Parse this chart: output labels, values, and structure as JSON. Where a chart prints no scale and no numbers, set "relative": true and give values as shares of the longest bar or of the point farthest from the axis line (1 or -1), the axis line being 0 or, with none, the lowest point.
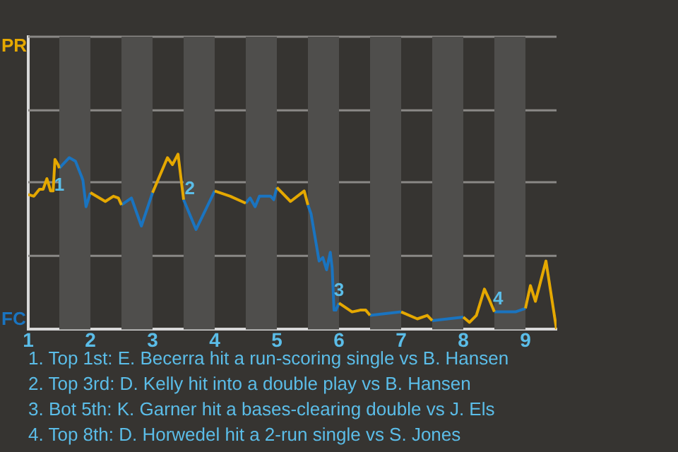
{
  "chart_data": {
    "type": "line",
    "relative": true,
    "xlim": [
      1,
      9.5
    ],
    "xticks": [
      1,
      2,
      3,
      4,
      5,
      6,
      7,
      8,
      9
    ],
    "x": [
      1.0,
      1.09,
      1.18,
      1.24,
      1.3,
      1.36,
      1.4,
      1.43,
      1.48,
      1.5,
      1.66,
      1.76,
      1.86,
      1.88,
      1.93,
      2.0,
      2.24,
      2.37,
      2.45,
      2.5,
      2.66,
      2.82,
      3.0,
      3.24,
      3.32,
      3.41,
      3.5,
      3.7,
      4.0,
      4.25,
      4.5,
      4.57,
      4.65,
      4.72,
      4.9,
      4.95,
      5.0,
      5.22,
      5.44,
      5.5,
      5.55,
      5.68,
      5.74,
      5.8,
      5.86,
      5.89,
      5.92,
      5.95,
      6.0,
      6.21,
      6.34,
      6.43,
      6.5,
      6.75,
      7.0,
      7.26,
      7.42,
      7.5,
      7.75,
      8.0,
      8.1,
      8.21,
      8.34,
      8.43,
      8.5,
      8.62,
      8.84,
      9.0,
      9.08,
      9.16,
      9.33,
      9.5
    ],
    "series": [
      {
        "name": "PR",
        "color": "#e5a800",
        "values": [
          0.77,
          0.76,
          0.8,
          0.8,
          0.86,
          0.79,
          0.79,
          0.97,
          0.94,
          0.92,
          null,
          null,
          null,
          null,
          null,
          0.78,
          0.73,
          0.76,
          0.75,
          0.71,
          null,
          null,
          0.78,
          0.98,
          0.94,
          1.0,
          0.74,
          null,
          0.79,
          0.76,
          0.72,
          null,
          null,
          null,
          null,
          null,
          0.81,
          0.73,
          0.79,
          0.71,
          null,
          null,
          null,
          null,
          null,
          null,
          null,
          null,
          0.15,
          0.1,
          0.11,
          0.11,
          0.08,
          null,
          0.1,
          0.06,
          0.08,
          0.05,
          null,
          0.07,
          0.04,
          0.08,
          0.23,
          0.16,
          0.1,
          null,
          null,
          0.12,
          0.25,
          0.16,
          0.39,
          0.0
        ]
      },
      {
        "name": "FC",
        "color": "#1a74c0",
        "values": [
          null,
          null,
          null,
          null,
          null,
          null,
          null,
          null,
          null,
          0.92,
          0.98,
          0.96,
          0.87,
          0.85,
          0.7,
          0.78,
          null,
          null,
          null,
          0.71,
          0.75,
          0.59,
          0.78,
          null,
          null,
          null,
          0.74,
          0.57,
          0.79,
          null,
          0.72,
          0.75,
          0.7,
          0.76,
          0.76,
          0.74,
          0.81,
          null,
          null,
          0.71,
          0.66,
          0.39,
          0.41,
          0.34,
          0.44,
          0.35,
          0.11,
          0.11,
          0.15,
          null,
          null,
          null,
          0.08,
          0.09,
          0.1,
          null,
          null,
          0.05,
          0.06,
          0.07,
          null,
          null,
          null,
          null,
          0.1,
          0.1,
          0.1,
          0.12,
          null,
          null,
          null,
          null
        ]
      }
    ],
    "ref_lines": [
      {
        "axis": "y",
        "value": 0.42,
        "color": "#8a8886"
      },
      {
        "axis": "y",
        "value": 0.84,
        "color": "#8a8886"
      },
      {
        "axis": "y",
        "value": 1.25,
        "color": "#8a8886"
      },
      {
        "axis": "y",
        "value": 1.67,
        "color": "#8a8886"
      }
    ],
    "bands": [
      {
        "axis": "x",
        "from": 1.5,
        "to": 2,
        "color": "#4f4e4c"
      },
      {
        "axis": "x",
        "from": 2.5,
        "to": 3,
        "color": "#4f4e4c"
      },
      {
        "axis": "x",
        "from": 3.5,
        "to": 4,
        "color": "#4f4e4c"
      },
      {
        "axis": "x",
        "from": 4.5,
        "to": 5,
        "color": "#4f4e4c"
      },
      {
        "axis": "x",
        "from": 5.5,
        "to": 6,
        "color": "#4f4e4c"
      },
      {
        "axis": "x",
        "from": 6.5,
        "to": 7,
        "color": "#4f4e4c"
      },
      {
        "axis": "x",
        "from": 7.5,
        "to": 8,
        "color": "#4f4e4c"
      },
      {
        "axis": "x",
        "from": 8.5,
        "to": 9,
        "color": "#4f4e4c"
      }
    ],
    "annotations": [
      {
        "text": "1",
        "x": 1.5,
        "y": 0.82
      },
      {
        "text": "2",
        "x": 3.6,
        "y": 0.8
      },
      {
        "text": "3",
        "x": 6.0,
        "y": 0.22
      },
      {
        "text": "4",
        "x": 8.56,
        "y": 0.17
      },
      "1. Top 1st: E. Becerra hit a run-scoring single vs B. Hansen",
      "2. Top 3rd: D. Kelly hit into a double play vs B. Hansen",
      "3. Bot 5th: K. Garner hit a bases-clearing double vs J. Els",
      "4. Top 8th: D. Horwedel hit a 2-run single vs S. Jones"
    ],
    "legend": "left",
    "marker": "none",
    "line_style": "solid"
  }
}
